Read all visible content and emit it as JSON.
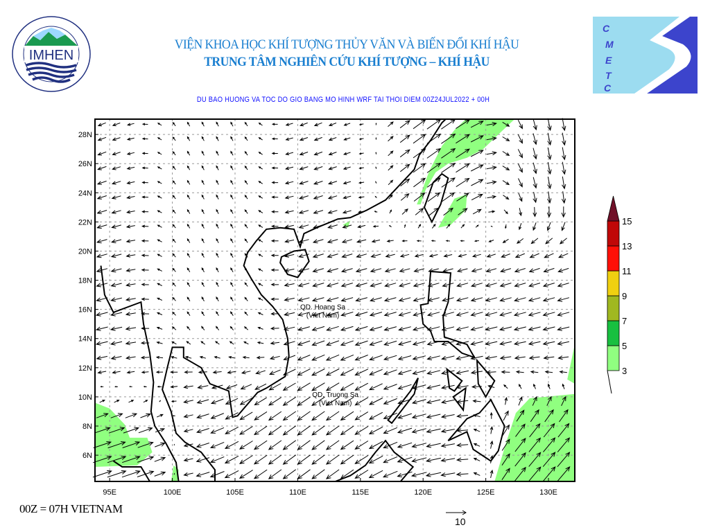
{
  "header": {
    "institute_line": "VIỆN KHOA HỌC KHÍ TƯỢNG THỦY VĂN VÀ BIẾN ĐỔI KHÍ HẬU",
    "center_line": "TRUNG TÂM NGHIÊN CỨU KHÍ TƯỢNG – KHÍ HẬU",
    "left_logo": {
      "text": "IMHEN",
      "ring_text": "VIEN KHOA HOC · KHI TUONG THUY VAN VA BIEN DOI KHI HAU"
    },
    "right_logo": {
      "letters": [
        "C",
        "M",
        "E",
        "T",
        "C"
      ]
    }
  },
  "map": {
    "title": "DU BAO HUONG VA TOC DO GIO BANG MO HINH WRF TAI THOI DIEM  00Z24JUL2022 + 00H",
    "lon_ticks": [
      "95E",
      "100E",
      "105E",
      "110E",
      "115E",
      "120E",
      "125E",
      "130E"
    ],
    "lon_values": [
      95,
      100,
      105,
      110,
      115,
      120,
      125,
      130
    ],
    "lat_ticks": [
      "28N",
      "26N",
      "24N",
      "22N",
      "20N",
      "18N",
      "16N",
      "14N",
      "12N",
      "10N",
      "8N",
      "6N"
    ],
    "lat_values": [
      28,
      26,
      24,
      22,
      20,
      18,
      16,
      14,
      12,
      10,
      8,
      6
    ],
    "lon_range": [
      93.83,
      132.1
    ],
    "lat_range": [
      4.2,
      29.05
    ],
    "grid": true,
    "labels": [
      {
        "line1": "QD. Hoang Sa",
        "line2": "(Viet Nam)",
        "lon": 112.0,
        "lat": 16.0
      },
      {
        "line1": "QD. Truong Sa",
        "line2": "(Viet Nam)",
        "lon": 113.0,
        "lat": 10.0
      }
    ],
    "shading_color": "#90ff80"
  },
  "legend": {
    "levels": [
      "3",
      "5",
      "7",
      "9",
      "11",
      "13",
      "15"
    ],
    "colors": [
      "#90ff80",
      "#18c040",
      "#a0b820",
      "#f0d010",
      "#ff1008",
      "#c00808",
      "#701028"
    ]
  },
  "reference_vector": {
    "value": "10"
  },
  "footer": {
    "time_note": "00Z = 07H VIETNAM"
  }
}
